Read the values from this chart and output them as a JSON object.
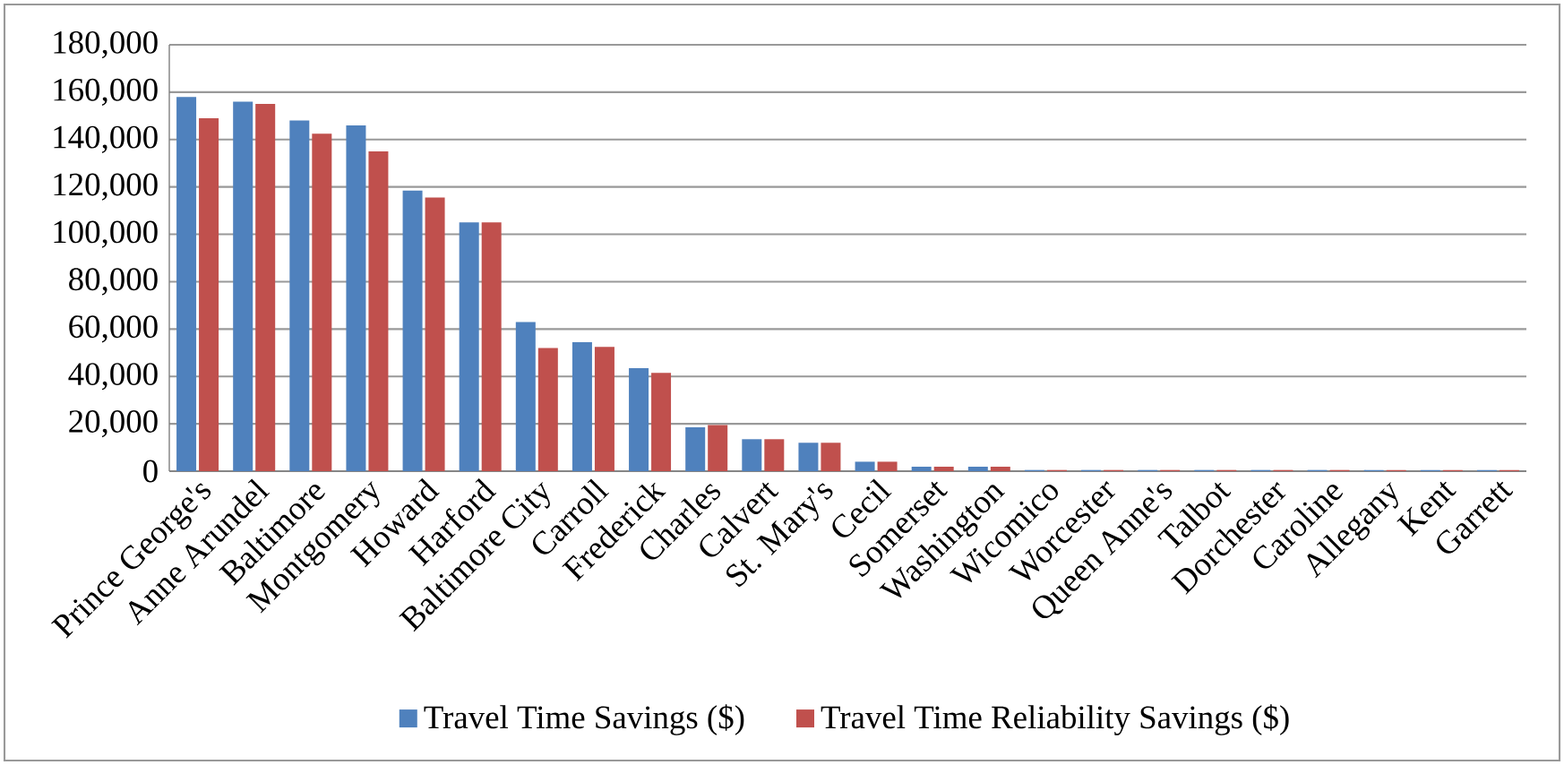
{
  "chart_data": {
    "type": "bar",
    "categories": [
      "Prince George's",
      "Anne Arundel",
      "Baltimore",
      "Montgomery",
      "Howard",
      "Harford",
      "Baltimore City",
      "Carroll",
      "Frederick",
      "Charles",
      "Calvert",
      "St. Mary's",
      "Cecil",
      "Somerset",
      "Washington",
      "Wicomico",
      "Worcester",
      "Queen Anne's",
      "Talbot",
      "Dorchester",
      "Caroline",
      "Allegany",
      "Kent",
      "Garrett"
    ],
    "series": [
      {
        "name": "Travel Time Savings ($)",
        "color": "#4f81bd",
        "values": [
          158000,
          156000,
          148000,
          146000,
          118500,
          105000,
          63000,
          54500,
          43500,
          18500,
          13500,
          12000,
          4000,
          1900,
          1900,
          500,
          500,
          500,
          500,
          500,
          500,
          500,
          500,
          500
        ]
      },
      {
        "name": "Travel Time Reliability Savings ($)",
        "color": "#c0504d",
        "values": [
          149000,
          155000,
          142500,
          135000,
          115500,
          105000,
          52000,
          52500,
          41500,
          19500,
          13500,
          12000,
          4000,
          1900,
          1900,
          500,
          500,
          500,
          500,
          500,
          500,
          500,
          500,
          500
        ]
      }
    ],
    "ylim": [
      0,
      180000
    ],
    "yticks": [
      {
        "value": 0,
        "label": "0"
      },
      {
        "value": 20000,
        "label": "20,000"
      },
      {
        "value": 40000,
        "label": "40,000"
      },
      {
        "value": 60000,
        "label": "60,000"
      },
      {
        "value": 80000,
        "label": "80,000"
      },
      {
        "value": 100000,
        "label": "100,000"
      },
      {
        "value": 120000,
        "label": "120,000"
      },
      {
        "value": 140000,
        "label": "140,000"
      },
      {
        "value": 160000,
        "label": "160,000"
      },
      {
        "value": 180000,
        "label": "180,000"
      }
    ],
    "grid": "y",
    "legend": "bottom"
  }
}
